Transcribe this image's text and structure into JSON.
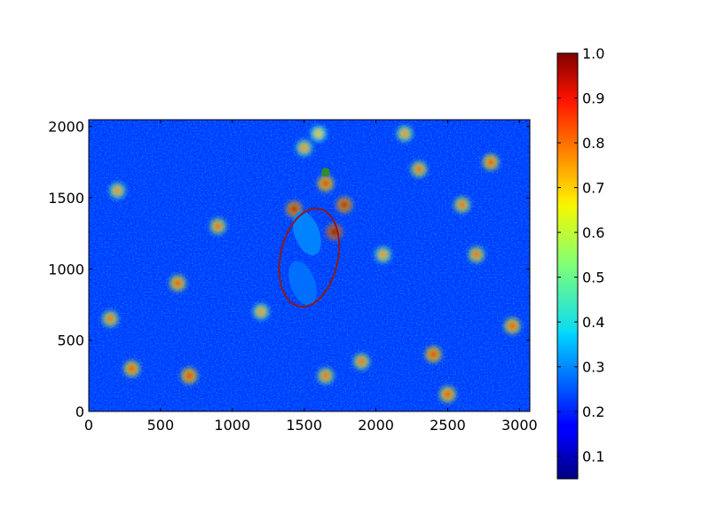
{
  "chart_data": {
    "type": "heatmap",
    "title": "",
    "xlabel": "",
    "ylabel": "",
    "xlim": [
      0,
      3072
    ],
    "ylim": [
      0,
      2048
    ],
    "x_ticks": [
      0,
      500,
      1000,
      1500,
      2000,
      2500,
      3000
    ],
    "y_ticks": [
      0,
      500,
      1000,
      1500,
      2000
    ],
    "colormap": "jet",
    "colorbar": {
      "min": 0.05,
      "max": 1.0,
      "ticks": [
        0.1,
        0.2,
        0.3,
        0.4,
        0.5,
        0.6,
        0.7,
        0.8,
        0.9,
        1.0
      ],
      "tick_labels": [
        "0.1",
        "0.2",
        "0.3",
        "0.4",
        "0.5",
        "0.6",
        "0.7",
        "0.8",
        "0.9",
        "1.0"
      ]
    },
    "background_value": 0.22,
    "ellipse": {
      "center": [
        1535,
        1080
      ],
      "half_width": 200,
      "half_height": 350,
      "rotation_deg": -12,
      "color": "#8b1a1a"
    },
    "marker": {
      "x": 1650,
      "y": 1680,
      "color": "#2e8b2e"
    },
    "hotspots": [
      {
        "x": 1500,
        "y": 1850,
        "value": 0.75
      },
      {
        "x": 1650,
        "y": 1600,
        "value": 0.9
      },
      {
        "x": 1430,
        "y": 1420,
        "value": 0.95
      },
      {
        "x": 1710,
        "y": 1260,
        "value": 1.0
      },
      {
        "x": 1780,
        "y": 1450,
        "value": 0.95
      },
      {
        "x": 1600,
        "y": 1950,
        "value": 0.7
      },
      {
        "x": 900,
        "y": 1300,
        "value": 0.8
      },
      {
        "x": 620,
        "y": 900,
        "value": 0.85
      },
      {
        "x": 300,
        "y": 300,
        "value": 0.85
      },
      {
        "x": 700,
        "y": 250,
        "value": 0.9
      },
      {
        "x": 2400,
        "y": 400,
        "value": 0.9
      },
      {
        "x": 2500,
        "y": 120,
        "value": 0.85
      },
      {
        "x": 2800,
        "y": 1750,
        "value": 0.85
      },
      {
        "x": 2950,
        "y": 600,
        "value": 0.85
      },
      {
        "x": 2300,
        "y": 1700,
        "value": 0.8
      },
      {
        "x": 2050,
        "y": 1100,
        "value": 0.75
      },
      {
        "x": 1900,
        "y": 350,
        "value": 0.8
      },
      {
        "x": 200,
        "y": 1550,
        "value": 0.75
      },
      {
        "x": 150,
        "y": 650,
        "value": 0.8
      },
      {
        "x": 2700,
        "y": 1100,
        "value": 0.8
      },
      {
        "x": 1200,
        "y": 700,
        "value": 0.75
      },
      {
        "x": 1650,
        "y": 250,
        "value": 0.8
      },
      {
        "x": 2200,
        "y": 1950,
        "value": 0.75
      },
      {
        "x": 2600,
        "y": 1450,
        "value": 0.8
      }
    ],
    "cool_regions": [
      {
        "x": 1520,
        "y": 1250,
        "value": 0.3
      },
      {
        "x": 1490,
        "y": 900,
        "value": 0.28
      }
    ]
  }
}
